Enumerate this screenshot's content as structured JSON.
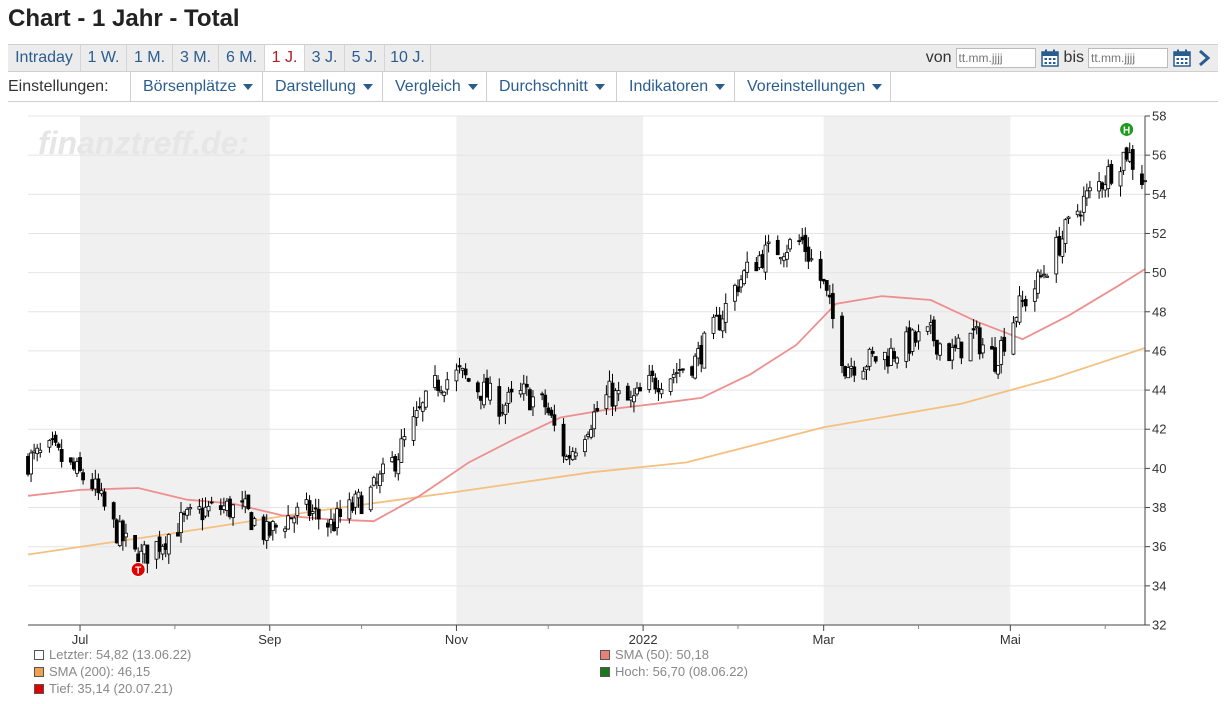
{
  "page": {
    "title": "Chart - 1 Jahr - Total"
  },
  "range_tabs": [
    {
      "label": "Intraday"
    },
    {
      "label": "1 W."
    },
    {
      "label": "1 M."
    },
    {
      "label": "3 M."
    },
    {
      "label": "6 M."
    },
    {
      "label": "1 J.",
      "active": true
    },
    {
      "label": "3 J."
    },
    {
      "label": "5 J."
    },
    {
      "label": "10 J."
    }
  ],
  "date_range": {
    "from_label": "von",
    "to_label": "bis",
    "from_placeholder": "tt.mm.jjjj",
    "to_placeholder": "tt.mm.jjjj"
  },
  "settings": {
    "label": "Einstellungen:",
    "menus": [
      {
        "label": "Börsenplätze"
      },
      {
        "label": "Darstellung"
      },
      {
        "label": "Vergleich"
      },
      {
        "label": "Durchschnitt"
      },
      {
        "label": "Indikatoren"
      },
      {
        "label": "Voreinstellungen"
      }
    ]
  },
  "chart_data": {
    "type": "candlestick",
    "watermark": "finanztreff.de:",
    "ylim": [
      32,
      58
    ],
    "y_ticks": [
      32,
      34,
      36,
      38,
      40,
      42,
      44,
      46,
      48,
      50,
      52,
      54,
      56,
      58
    ],
    "x_range": [
      "2021-06-14",
      "2022-06-14"
    ],
    "x_ticks": [
      {
        "label": "Jul",
        "date": "2021-07-01"
      },
      {
        "label": "Sep",
        "date": "2021-09-01"
      },
      {
        "label": "Nov",
        "date": "2021-11-01"
      },
      {
        "label": "2022",
        "date": "2022-01-01"
      },
      {
        "label": "Mar",
        "date": "2022-03-01"
      },
      {
        "label": "Mai",
        "date": "2022-05-01"
      }
    ],
    "shaded_months": [
      [
        "2021-07-01",
        "2021-09-01"
      ],
      [
        "2021-11-01",
        "2022-01-01"
      ],
      [
        "2022-03-01",
        "2022-05-01"
      ]
    ],
    "price_path": [
      [
        "2021-06-14",
        40.4
      ],
      [
        "2021-06-22",
        40.9
      ],
      [
        "2021-06-28",
        40.0
      ],
      [
        "2021-07-05",
        39.2
      ],
      [
        "2021-07-12",
        37.0
      ],
      [
        "2021-07-20",
        35.3
      ],
      [
        "2021-07-27",
        36.2
      ],
      [
        "2021-08-03",
        37.2
      ],
      [
        "2021-08-10",
        37.8
      ],
      [
        "2021-08-17",
        38.0
      ],
      [
        "2021-08-24",
        37.8
      ],
      [
        "2021-08-31",
        36.6
      ],
      [
        "2021-09-07",
        37.5
      ],
      [
        "2021-09-14",
        37.8
      ],
      [
        "2021-09-21",
        37.1
      ],
      [
        "2021-09-28",
        38.0
      ],
      [
        "2021-10-05",
        38.9
      ],
      [
        "2021-10-12",
        40.5
      ],
      [
        "2021-10-19",
        42.5
      ],
      [
        "2021-10-26",
        44.4
      ],
      [
        "2021-11-02",
        44.8
      ],
      [
        "2021-11-09",
        44.0
      ],
      [
        "2021-11-16",
        43.2
      ],
      [
        "2021-11-23",
        43.8
      ],
      [
        "2021-11-30",
        43.2
      ],
      [
        "2021-12-07",
        40.5
      ],
      [
        "2021-12-14",
        42.3
      ],
      [
        "2021-12-21",
        43.8
      ],
      [
        "2021-12-28",
        43.3
      ],
      [
        "2022-01-04",
        44.4
      ],
      [
        "2022-01-11",
        44.9
      ],
      [
        "2022-01-18",
        45.5
      ],
      [
        "2022-01-25",
        47.3
      ],
      [
        "2022-02-01",
        49.5
      ],
      [
        "2022-02-08",
        50.8
      ],
      [
        "2022-02-15",
        51.3
      ],
      [
        "2022-02-22",
        51.6
      ],
      [
        "2022-03-01",
        49.3
      ],
      [
        "2022-03-08",
        45.3
      ],
      [
        "2022-03-15",
        45.5
      ],
      [
        "2022-03-22",
        45.8
      ],
      [
        "2022-03-29",
        46.4
      ],
      [
        "2022-04-05",
        46.8
      ],
      [
        "2022-04-12",
        45.8
      ],
      [
        "2022-04-19",
        46.8
      ],
      [
        "2022-04-26",
        45.6
      ],
      [
        "2022-05-03",
        48.0
      ],
      [
        "2022-05-10",
        49.5
      ],
      [
        "2022-05-17",
        51.5
      ],
      [
        "2022-05-24",
        53.5
      ],
      [
        "2022-05-31",
        54.7
      ],
      [
        "2022-06-08",
        56.2
      ],
      [
        "2022-06-13",
        54.82
      ]
    ],
    "sma50": [
      [
        "2021-06-14",
        38.6
      ],
      [
        "2021-07-01",
        38.9
      ],
      [
        "2021-07-20",
        39.0
      ],
      [
        "2021-08-05",
        38.4
      ],
      [
        "2021-08-20",
        38.2
      ],
      [
        "2021-09-05",
        37.6
      ],
      [
        "2021-09-20",
        37.4
      ],
      [
        "2021-10-05",
        37.3
      ],
      [
        "2021-10-20",
        38.6
      ],
      [
        "2021-11-05",
        40.3
      ],
      [
        "2021-11-20",
        41.5
      ],
      [
        "2021-12-05",
        42.6
      ],
      [
        "2021-12-20",
        43.0
      ],
      [
        "2022-01-05",
        43.3
      ],
      [
        "2022-01-20",
        43.6
      ],
      [
        "2022-02-05",
        44.8
      ],
      [
        "2022-02-20",
        46.3
      ],
      [
        "2022-03-05",
        48.4
      ],
      [
        "2022-03-20",
        48.8
      ],
      [
        "2022-04-05",
        48.6
      ],
      [
        "2022-04-20",
        47.5
      ],
      [
        "2022-05-05",
        46.6
      ],
      [
        "2022-05-20",
        47.8
      ],
      [
        "2022-06-05",
        49.3
      ],
      [
        "2022-06-14",
        50.18
      ]
    ],
    "sma200": [
      [
        "2021-06-14",
        35.6
      ],
      [
        "2021-08-01",
        36.7
      ],
      [
        "2021-09-15",
        37.8
      ],
      [
        "2021-11-01",
        38.8
      ],
      [
        "2021-12-15",
        39.8
      ],
      [
        "2022-01-15",
        40.3
      ],
      [
        "2022-03-01",
        42.1
      ],
      [
        "2022-04-15",
        43.3
      ],
      [
        "2022-05-15",
        44.6
      ],
      [
        "2022-06-14",
        46.15
      ]
    ],
    "markers": [
      {
        "label": "T",
        "date": "2021-07-20",
        "value": 35.14,
        "color": "#e00000"
      },
      {
        "label": "H",
        "date": "2022-06-08",
        "value": 56.7,
        "color": "#1e9a1e"
      }
    ],
    "colors": {
      "sma50": "#ee8f8f",
      "sma200": "#f4c07f",
      "candles": "#000000",
      "shading": "#f0f0f0"
    }
  },
  "legend": [
    {
      "label": "Letzter: 54,82 (13.06.22)",
      "color": "#ffffff"
    },
    {
      "label": "SMA (50): 50,18",
      "color": "#e8807a"
    },
    {
      "label": "SMA (200): 46,15",
      "color": "#f0a050"
    },
    {
      "label": "Hoch: 56,70 (08.06.22)",
      "color": "#1a7a1a"
    },
    {
      "label": "Tief: 35,14 (20.07.21)",
      "color": "#e00000"
    }
  ]
}
